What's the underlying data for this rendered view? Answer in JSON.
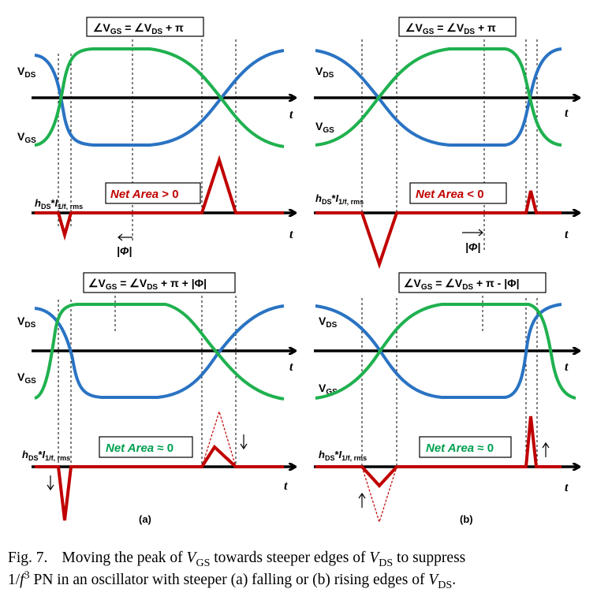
{
  "figure": {
    "panels": [
      {
        "id": "a-top",
        "eq": {
          "prefix": "∠V",
          "s1": "GS",
          "mid": " = ∠V",
          "s2": "DS",
          "suffix": " + π"
        },
        "vds_label": {
          "main": "V",
          "sub": "DS"
        },
        "vgs_label": {
          "main": "V",
          "sub": "GS"
        },
        "net_area": {
          "text": "Net Area",
          "rel": " > 0",
          "color": "#c00000"
        },
        "h_label": {
          "h": "h",
          "hsub": "DS",
          "star": "*",
          "i": "I",
          "isub": "1/f, rms"
        },
        "t_axis": "t",
        "phi": "|Φ|"
      },
      {
        "id": "b-top",
        "eq": {
          "prefix": "∠V",
          "s1": "GS",
          "mid": " = ∠V",
          "s2": "DS",
          "suffix": " + π"
        },
        "vds_label": {
          "main": "V",
          "sub": "DS"
        },
        "vgs_label": {
          "main": "V",
          "sub": "GS"
        },
        "net_area": {
          "text": "Net Area",
          "rel": " < 0",
          "color": "#c00000"
        },
        "h_label": {
          "h": "h",
          "hsub": "DS",
          "star": "*",
          "i": "I",
          "isub": "1/f, rms"
        },
        "t_axis": "t",
        "phi": "|Φ|"
      },
      {
        "id": "a-bottom",
        "eq": {
          "prefix": "∠V",
          "s1": "GS",
          "mid": " = ∠V",
          "s2": "DS",
          "suffix": " + π + |Φ|"
        },
        "vds_label": {
          "main": "V",
          "sub": "DS"
        },
        "vgs_label": {
          "main": "V",
          "sub": "GS"
        },
        "net_area": {
          "text": "Net Area",
          "rel": " ≈ 0",
          "color": "#00a050"
        },
        "h_label": {
          "h": "h",
          "hsub": "DS",
          "star": "*",
          "i": "I",
          "isub": "1/f, rms"
        },
        "t_axis": "t"
      },
      {
        "id": "b-bottom",
        "eq": {
          "prefix": "∠V",
          "s1": "GS",
          "mid": " = ∠V",
          "s2": "DS",
          "suffix": " + π - |Φ|"
        },
        "vds_label": {
          "main": "V",
          "sub": "DS"
        },
        "vgs_label": {
          "main": "V",
          "sub": "GS"
        },
        "net_area": {
          "text": "Net Area",
          "rel": " ≈ 0",
          "color": "#00a050"
        },
        "h_label": {
          "h": "h",
          "hsub": "DS",
          "star": "*",
          "i": "I",
          "isub": "1/f, rms"
        },
        "t_axis": "t"
      }
    ],
    "subfig_labels": [
      "(a)",
      "(b)"
    ],
    "colors": {
      "vds": "#2a73c3",
      "vgs": "#1fb14f",
      "isf": "#c00000",
      "axis": "#000000"
    }
  },
  "caption": {
    "fig": "Fig. 7.",
    "line1_a": "Moving the peak of ",
    "v1": "V",
    "v1sub": "GS",
    "line1_b": " towards steeper edges of ",
    "v2": "V",
    "v2sub": "DS",
    "line1_c": " to suppress",
    "l2_frac": "1/",
    "l2_f": "f",
    "l2_sup": "3",
    "line2_a": " PN in an oscillator with steeper (a) falling or (b) rising edges of ",
    "v3": "V",
    "v3sub": "DS",
    "line2_end": "."
  }
}
